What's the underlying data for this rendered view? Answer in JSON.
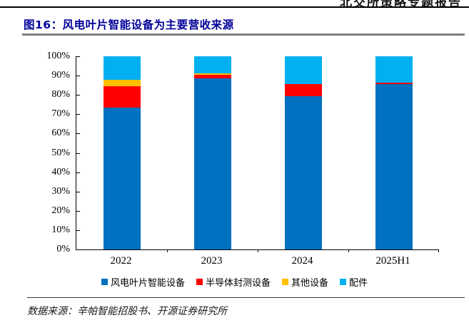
{
  "page": {
    "header_text": "北交所策略专题报告",
    "figure_title": "图16：风电叶片智能设备为主要营收来源",
    "source_text": "数据来源：辛帕智能招股书、开源证券研究所"
  },
  "colors": {
    "title_navy": "#000099",
    "title_rule_gray": "#7f7f7f",
    "rule_black": "#000000",
    "series_blue": "#0070C0",
    "series_red": "#FF0000",
    "series_yellow": "#FFC000",
    "series_cyan": "#00B0F0"
  },
  "chart_data": {
    "type": "bar",
    "stacked": true,
    "unit": "percent_of_revenue",
    "title": "图16：风电叶片智能设备为主要营收来源",
    "categories": [
      "2022",
      "2023",
      "2024",
      "2025H1"
    ],
    "series": [
      {
        "name": "风电叶片智能设备",
        "color": "#0070C0",
        "values": [
          73.5,
          88.5,
          79.3,
          85.5
        ]
      },
      {
        "name": "半导体封测设备",
        "color": "#FF0000",
        "values": [
          11.0,
          2.0,
          6.2,
          1.0
        ]
      },
      {
        "name": "其他设备",
        "color": "#FFC000",
        "values": [
          3.5,
          0.8,
          0,
          0
        ]
      },
      {
        "name": "配件",
        "color": "#00B0F0",
        "values": [
          12.0,
          8.7,
          14.5,
          13.5
        ]
      }
    ],
    "y_ticks": [
      "100%",
      "90%",
      "80%",
      "70%",
      "60%",
      "50%",
      "40%",
      "30%",
      "20%",
      "10%",
      "0%"
    ],
    "ylim": [
      0,
      100
    ],
    "xlabel": "",
    "ylabel": "",
    "grid": false,
    "legend_position": "bottom"
  }
}
